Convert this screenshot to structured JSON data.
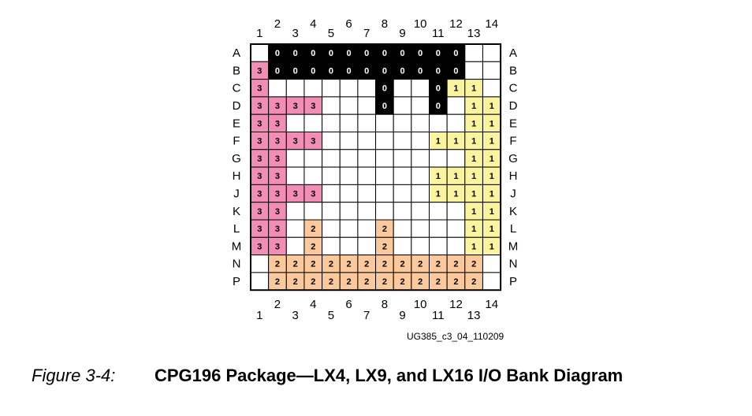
{
  "columns": [
    "1",
    "2",
    "3",
    "4",
    "5",
    "6",
    "7",
    "8",
    "9",
    "10",
    "11",
    "12",
    "13",
    "14"
  ],
  "rows": [
    {
      "label": "A",
      "cells": [
        null,
        0,
        0,
        0,
        0,
        0,
        0,
        0,
        0,
        0,
        0,
        0,
        null,
        null
      ]
    },
    {
      "label": "B",
      "cells": [
        3,
        0,
        0,
        0,
        0,
        0,
        0,
        0,
        0,
        0,
        0,
        0,
        null,
        null
      ]
    },
    {
      "label": "C",
      "cells": [
        3,
        null,
        null,
        null,
        null,
        null,
        null,
        0,
        null,
        null,
        0,
        1,
        1,
        null
      ]
    },
    {
      "label": "D",
      "cells": [
        3,
        3,
        3,
        3,
        null,
        null,
        null,
        0,
        null,
        null,
        0,
        null,
        1,
        1
      ]
    },
    {
      "label": "E",
      "cells": [
        3,
        3,
        null,
        null,
        null,
        null,
        null,
        null,
        null,
        null,
        null,
        null,
        1,
        1
      ]
    },
    {
      "label": "F",
      "cells": [
        3,
        3,
        3,
        3,
        null,
        null,
        null,
        null,
        null,
        null,
        1,
        1,
        1,
        1
      ]
    },
    {
      "label": "G",
      "cells": [
        3,
        3,
        null,
        null,
        null,
        null,
        null,
        null,
        null,
        null,
        null,
        null,
        1,
        1
      ]
    },
    {
      "label": "H",
      "cells": [
        3,
        3,
        null,
        null,
        null,
        null,
        null,
        null,
        null,
        null,
        1,
        1,
        1,
        1
      ]
    },
    {
      "label": "J",
      "cells": [
        3,
        3,
        3,
        3,
        null,
        null,
        null,
        null,
        null,
        null,
        1,
        1,
        1,
        1
      ]
    },
    {
      "label": "K",
      "cells": [
        3,
        3,
        null,
        null,
        null,
        null,
        null,
        null,
        null,
        null,
        null,
        null,
        1,
        1
      ]
    },
    {
      "label": "L",
      "cells": [
        3,
        3,
        null,
        2,
        null,
        null,
        null,
        2,
        null,
        null,
        null,
        null,
        1,
        1
      ]
    },
    {
      "label": "M",
      "cells": [
        3,
        3,
        null,
        2,
        null,
        null,
        null,
        2,
        null,
        null,
        null,
        null,
        1,
        1
      ]
    },
    {
      "label": "N",
      "cells": [
        null,
        2,
        2,
        2,
        2,
        2,
        2,
        2,
        2,
        2,
        2,
        2,
        2,
        null
      ]
    },
    {
      "label": "P",
      "cells": [
        null,
        2,
        2,
        2,
        2,
        2,
        2,
        2,
        2,
        2,
        2,
        2,
        2,
        null
      ]
    }
  ],
  "bank_colors": [
    "#000000",
    "#faf49e",
    "#fbc99b",
    "#f28db6"
  ],
  "code": "UG385_c3_04_110209",
  "caption": {
    "number": "Figure 3-4:",
    "title": "CPG196 Package—LX4, LX9, and LX16 I/O Bank Diagram"
  }
}
